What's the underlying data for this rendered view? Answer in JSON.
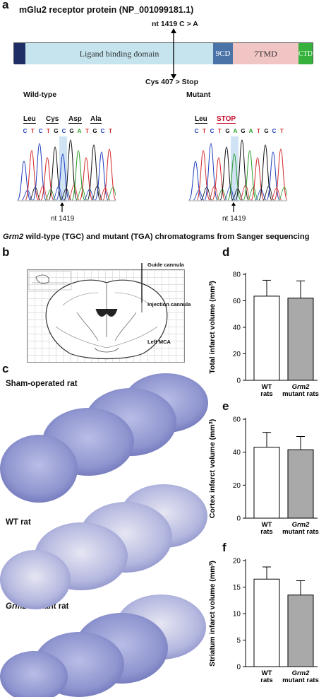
{
  "panel_a": {
    "label": "a",
    "title": "mGlu2 receptor protein (NP_001099181.1)",
    "mutation_nt": "nt 1419 C > A",
    "mutation_aa": "Cys 407 > Stop",
    "domains": [
      "Ligand binding domain",
      "9CD",
      "7TMD",
      "CTD"
    ],
    "domain_colors": {
      "signal": "#1f2f66",
      "ligand": "#c5e4ee",
      "9cd": "#4a73a8",
      "7tmd": "#f2c5c5",
      "ctd": "#35b13c"
    },
    "wt": {
      "label": "Wild-type",
      "codons": [
        "Leu",
        "Cys",
        "Asp",
        "Ala"
      ],
      "bases": [
        "C",
        "T",
        "C",
        "T",
        "G",
        "C",
        "G",
        "A",
        "T",
        "G",
        "C",
        "T"
      ],
      "nt_label": "nt 1419"
    },
    "mut": {
      "label": "Mutant",
      "codons": [
        "Leu",
        "STOP"
      ],
      "bases": [
        "C",
        "T",
        "C",
        "T",
        "G",
        "A",
        "G",
        "A",
        "T",
        "G",
        "C",
        "T"
      ],
      "nt_label": "nt 1419"
    },
    "caption_italic": "Grm2",
    "caption_rest": " wild-type (TGC) and mutant (TGA) chromatograms from Sanger sequencing"
  },
  "panel_b": {
    "label": "b",
    "annotations": [
      "Guide cannula",
      "Injection cannula",
      "Left MCA"
    ]
  },
  "panel_c": {
    "label": "c",
    "groups": [
      "Sham-operated rat",
      "WT rat",
      "Grm2 mutant rat"
    ],
    "group3_italic": "Grm2",
    "group3_rest": " mutant rat"
  },
  "chart_data": [
    {
      "panel": "d",
      "type": "bar",
      "ylabel_prefix": "Total infarct volume (mm",
      "ylabel_sup": "3",
      "ylabel_suffix": ")",
      "ylim": [
        0,
        80
      ],
      "yticks": [
        0,
        20,
        40,
        60,
        80
      ],
      "categories": [
        "WT rats",
        "Grm2 mutant rats"
      ],
      "cat_lines": [
        [
          "WT",
          "rats"
        ],
        [
          "Grm2",
          "mutant rats"
        ]
      ],
      "values": [
        63.5,
        62
      ],
      "errors": [
        12,
        13
      ],
      "colors": [
        "#ffffff",
        "#a9a9a9"
      ]
    },
    {
      "panel": "e",
      "type": "bar",
      "ylabel_prefix": "Cortex infarct volume (mm",
      "ylabel_sup": "3",
      "ylabel_suffix": ")",
      "ylim": [
        0,
        60
      ],
      "yticks": [
        0,
        20,
        40,
        60
      ],
      "categories": [
        "WT rats",
        "Grm2 mutant rats"
      ],
      "cat_lines": [
        [
          "WT",
          "rats"
        ],
        [
          "Grm2",
          "mutant rats"
        ]
      ],
      "values": [
        43,
        41.5
      ],
      "errors": [
        9,
        8
      ],
      "colors": [
        "#ffffff",
        "#a9a9a9"
      ]
    },
    {
      "panel": "f",
      "type": "bar",
      "ylabel_prefix": "Striatum infarct volume (mm",
      "ylabel_sup": "3",
      "ylabel_suffix": ")",
      "ylim": [
        0,
        20
      ],
      "yticks": [
        0,
        5,
        10,
        15,
        20
      ],
      "categories": [
        "WT rats",
        "Grm2 mutant rats"
      ],
      "cat_lines": [
        [
          "WT",
          "rats"
        ],
        [
          "Grm2",
          "mutant rats"
        ]
      ],
      "values": [
        16.5,
        13.5
      ],
      "errors": [
        2.3,
        2.7
      ],
      "colors": [
        "#ffffff",
        "#a9a9a9"
      ]
    }
  ]
}
